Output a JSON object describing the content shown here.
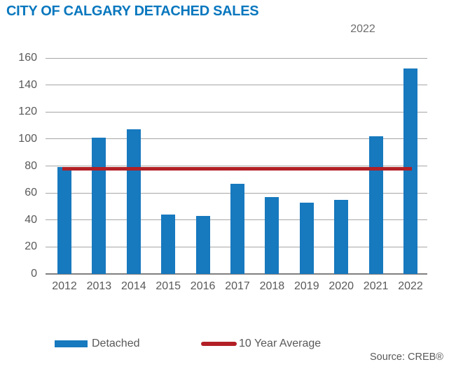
{
  "header": {
    "title": "CITY OF CALGARY DETACHED SALES",
    "subtitle": "2022"
  },
  "footer": {
    "source": "Source: CREB®"
  },
  "colors": {
    "bar": "#1779BE",
    "average_line": "#B22025",
    "title": "#0877BE",
    "axis_text": "#595959",
    "gridline": "#A6A6A6",
    "baseline": "#808080"
  },
  "chart_data": {
    "type": "bar",
    "title": "CITY OF CALGARY DETACHED SALES",
    "subtitle": "2022",
    "categories": [
      "2012",
      "2013",
      "2014",
      "2015",
      "2016",
      "2017",
      "2018",
      "2019",
      "2020",
      "2021",
      "2022"
    ],
    "series": [
      {
        "name": "Detached",
        "type": "bar",
        "values": [
          79,
          101,
          107,
          44,
          43,
          67,
          57,
          53,
          55,
          102,
          152
        ]
      },
      {
        "name": "10 Year Average",
        "type": "line",
        "value": 78
      }
    ],
    "xlabel": "",
    "ylabel": "",
    "ylim": [
      0,
      160
    ],
    "yticks": [
      0,
      20,
      40,
      60,
      80,
      100,
      120,
      140,
      160
    ],
    "grid": true,
    "legend_position": "bottom"
  }
}
